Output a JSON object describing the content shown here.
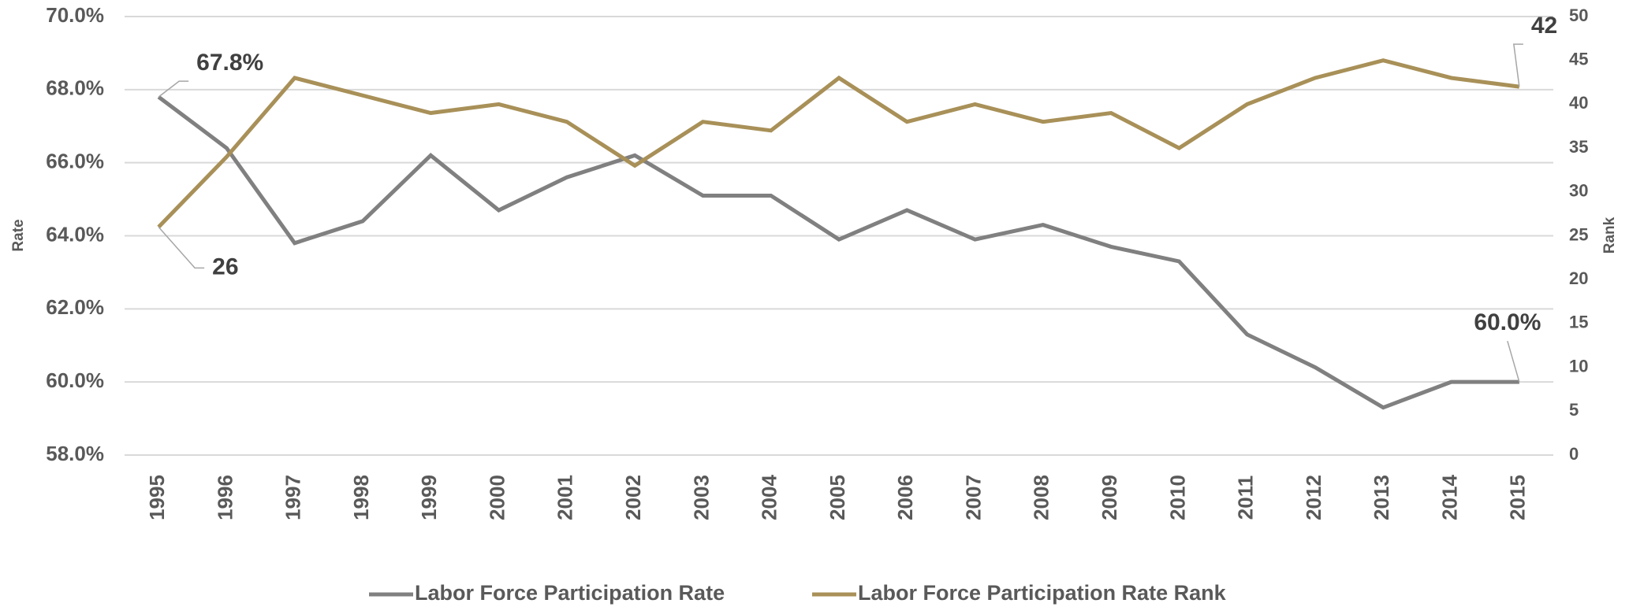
{
  "chart_data": {
    "type": "line",
    "categories": [
      "1995",
      "1996",
      "1997",
      "1998",
      "1999",
      "2000",
      "2001",
      "2002",
      "2003",
      "2004",
      "2005",
      "2006",
      "2007",
      "2008",
      "2009",
      "2010",
      "2011",
      "2012",
      "2013",
      "2014",
      "2015"
    ],
    "series": [
      {
        "name": "Labor Force Participation Rate",
        "color": "#808080",
        "values": [
          67.8,
          66.4,
          63.8,
          64.4,
          66.2,
          64.7,
          65.6,
          66.2,
          65.1,
          65.1,
          63.9,
          64.7,
          63.9,
          64.3,
          63.7,
          63.3,
          61.3,
          60.4,
          59.3,
          60.0,
          60.0
        ],
        "value_labels": [
          "67.8%",
          null,
          null,
          null,
          null,
          null,
          null,
          null,
          null,
          null,
          null,
          null,
          null,
          null,
          null,
          null,
          null,
          null,
          null,
          null,
          "60.0%"
        ]
      },
      {
        "name": "Labor Force Participation Rate Rank",
        "color": "#a89058",
        "axis": "y2",
        "values": [
          26,
          34,
          43,
          41,
          39,
          40,
          38,
          33,
          38,
          37,
          43,
          38,
          40,
          38,
          39,
          35,
          40,
          43,
          45,
          43,
          42
        ],
        "value_labels": [
          "26",
          null,
          null,
          null,
          null,
          null,
          null,
          null,
          null,
          null,
          null,
          null,
          null,
          null,
          null,
          null,
          null,
          null,
          null,
          null,
          "42"
        ]
      }
    ],
    "y_label": "Rate",
    "y2_label": "Rank",
    "ylim": [
      58,
      70
    ],
    "yticks": [
      {
        "value": 58,
        "label": "58.0%"
      },
      {
        "value": 60,
        "label": "60.0%"
      },
      {
        "value": 62,
        "label": "62.0%"
      },
      {
        "value": 64,
        "label": "64.0%"
      },
      {
        "value": 66,
        "label": "66.0%"
      },
      {
        "value": 68,
        "label": "68.0%"
      },
      {
        "value": 70,
        "label": "70.0%"
      }
    ],
    "y2lim": [
      0,
      50
    ],
    "y2ticks": [
      0,
      5,
      10,
      15,
      20,
      25,
      30,
      35,
      40,
      45,
      50
    ],
    "grid": true,
    "legend": "bottom"
  }
}
